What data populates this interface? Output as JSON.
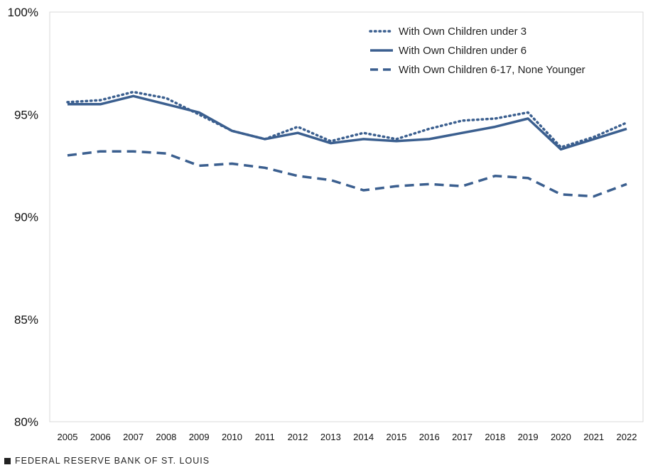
{
  "chart_data": {
    "type": "line",
    "title": "",
    "xlabel": "",
    "ylabel": "",
    "ylim": [
      80,
      100
    ],
    "yticks": [
      80,
      85,
      90,
      95,
      100
    ],
    "ytick_labels": [
      "80%",
      "85%",
      "90%",
      "95%",
      "100%"
    ],
    "categories": [
      "2005",
      "2006",
      "2007",
      "2008",
      "2009",
      "2010",
      "2011",
      "2012",
      "2013",
      "2014",
      "2015",
      "2016",
      "2017",
      "2018",
      "2019",
      "2020",
      "2021",
      "2022"
    ],
    "legend_position": "top-right",
    "color": "#3B5F8F",
    "series": [
      {
        "name": "With Own Children under 3",
        "style": "dotted",
        "values": [
          95.6,
          95.7,
          96.1,
          95.8,
          95.0,
          94.2,
          93.8,
          94.4,
          93.7,
          94.1,
          93.8,
          94.3,
          94.7,
          94.8,
          95.1,
          93.4,
          93.9,
          94.6
        ]
      },
      {
        "name": "With Own Children under 6",
        "style": "solid",
        "values": [
          95.5,
          95.5,
          95.9,
          95.5,
          95.1,
          94.2,
          93.8,
          94.1,
          93.6,
          93.8,
          93.7,
          93.8,
          94.1,
          94.4,
          94.8,
          93.3,
          93.8,
          94.3
        ]
      },
      {
        "name": "With Own Children 6-17, None Younger",
        "style": "dashed",
        "values": [
          93.0,
          93.2,
          93.2,
          93.1,
          92.5,
          92.6,
          92.4,
          92.0,
          91.8,
          91.3,
          91.5,
          91.6,
          91.5,
          92.0,
          91.9,
          91.1,
          91.0,
          91.6
        ]
      }
    ]
  },
  "footer": {
    "source": "FEDERAL RESERVE BANK OF ST. LOUIS"
  }
}
